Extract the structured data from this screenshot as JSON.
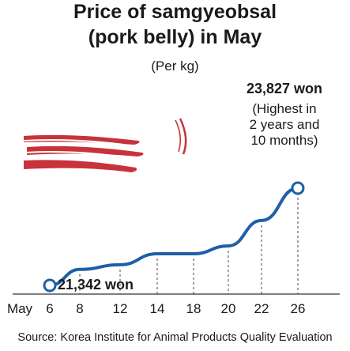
{
  "title_line1": "Price of samgyeobsal",
  "title_line2": "(pork belly) in May",
  "unit": "(Per kg)",
  "peak_annotation": {
    "value": "23,827 won",
    "note": [
      "(Highest in",
      "2 years and",
      "10 months)"
    ]
  },
  "low_annotation": "21,342 won",
  "source": "Source: Korea Institute for Animal Products Quality Evaluation",
  "colors": {
    "line": "#1f5fa8",
    "marker_fill": "#ffffff",
    "meat": "#c8323a",
    "axis": "#333333"
  },
  "chart_data": {
    "type": "line",
    "title": "Price of samgyeobsal (pork belly) in May",
    "ylabel": "(Per kg)",
    "x_month_label": "May",
    "categories": [
      "6",
      "8",
      "12",
      "14",
      "18",
      "20",
      "22",
      "26"
    ],
    "values": [
      21342,
      21750,
      21870,
      22150,
      22150,
      22350,
      23000,
      23827
    ],
    "series": [
      {
        "values": [
          21342,
          21750,
          21870,
          22150,
          22150,
          22350,
          23000,
          23827
        ]
      }
    ],
    "ylim": [
      21100,
      24000
    ],
    "highlighted": {
      "low_index": 0,
      "high_index": 7
    },
    "grid": false
  }
}
